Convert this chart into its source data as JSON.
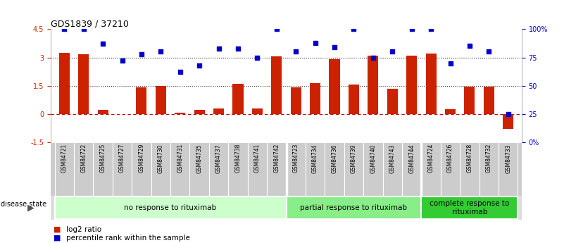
{
  "title": "GDS1839 / 37210",
  "samples": [
    "GSM84721",
    "GSM84722",
    "GSM84725",
    "GSM84727",
    "GSM84729",
    "GSM84730",
    "GSM84731",
    "GSM84735",
    "GSM84737",
    "GSM84738",
    "GSM84741",
    "GSM84742",
    "GSM84723",
    "GSM84734",
    "GSM84736",
    "GSM84739",
    "GSM84740",
    "GSM84743",
    "GSM84744",
    "GSM84724",
    "GSM84726",
    "GSM84728",
    "GSM84732",
    "GSM84733"
  ],
  "log2_ratio": [
    3.25,
    3.15,
    0.2,
    0.0,
    1.4,
    1.5,
    0.05,
    0.22,
    0.28,
    1.6,
    0.3,
    3.05,
    1.4,
    1.62,
    2.9,
    1.55,
    3.1,
    1.35,
    3.1,
    3.2,
    0.25,
    1.45,
    1.45,
    -0.78
  ],
  "percentile": [
    100,
    100,
    87,
    72,
    78,
    80,
    62,
    68,
    83,
    83,
    75,
    100,
    80,
    88,
    84,
    100,
    75,
    80,
    100,
    100,
    70,
    85,
    80,
    25
  ],
  "bar_color": "#cc2200",
  "dot_color": "#0000cc",
  "ylim_left": [
    -1.5,
    4.5
  ],
  "ylim_right": [
    0,
    100
  ],
  "yticks_left": [
    -1.5,
    0.0,
    1.5,
    3.0,
    4.5
  ],
  "yticks_right": [
    0,
    25,
    50,
    75,
    100
  ],
  "group_boundaries": [
    12,
    19
  ],
  "groups": [
    {
      "label": "no response to rituximab",
      "start": 0,
      "end": 12,
      "color": "#ccffcc"
    },
    {
      "label": "partial response to rituximab",
      "start": 12,
      "end": 19,
      "color": "#88ee88"
    },
    {
      "label": "complete response to\nrituximab",
      "start": 19,
      "end": 24,
      "color": "#33cc33"
    }
  ],
  "legend_items": [
    "log2 ratio",
    "percentile rank within the sample"
  ],
  "legend_colors": [
    "#cc2200",
    "#0000cc"
  ],
  "disease_state_label": "disease state"
}
